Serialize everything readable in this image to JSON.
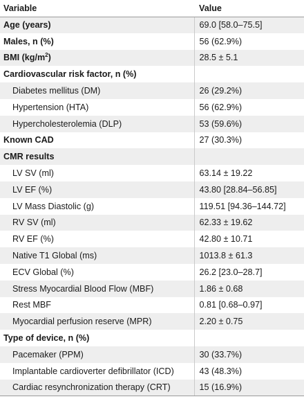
{
  "header": {
    "variable": "Variable",
    "value": "Value"
  },
  "rows": [
    {
      "label": "Age (years)",
      "value": "69.0 [58.0–75.5]",
      "style": "bold"
    },
    {
      "label": "Males, n (%)",
      "value": "56 (62.9%)",
      "style": "bold"
    },
    {
      "label": "BMI (kg/m",
      "sup": "2",
      "label_suffix": ")",
      "value": "28.5 ± 5.1",
      "style": "bold"
    },
    {
      "label": "Cardiovascular risk factor, n (%)",
      "value": "",
      "style": "bold"
    },
    {
      "label": "Diabetes mellitus (DM)",
      "value": "26 (29.2%)",
      "style": "sub"
    },
    {
      "label": "Hypertension (HTA)",
      "value": "56 (62.9%)",
      "style": "sub"
    },
    {
      "label": "Hypercholesterolemia (DLP)",
      "value": "53 (59.6%)",
      "style": "sub"
    },
    {
      "label": "Known CAD",
      "value": "27 (30.3%)",
      "style": "bold"
    },
    {
      "label": "CMR results",
      "value": "",
      "style": "bold"
    },
    {
      "label": "LV SV (ml)",
      "value": "63.14 ± 19.22",
      "style": "sub"
    },
    {
      "label": "LV EF (%)",
      "value": "43.80 [28.84–56.85]",
      "style": "sub"
    },
    {
      "label": "LV Mass Diastolic (g)",
      "value": "119.51 [94.36–144.72]",
      "style": "sub"
    },
    {
      "label": "RV SV (ml)",
      "value": "62.33 ± 19.62",
      "style": "sub"
    },
    {
      "label": "RV EF (%)",
      "value": "42.80 ± 10.71",
      "style": "sub"
    },
    {
      "label": "Native T1 Global (ms)",
      "value": "1013.8 ± 61.3",
      "style": "sub"
    },
    {
      "label": "ECV Global (%)",
      "value": "26.2 [23.0–28.7]",
      "style": "sub"
    },
    {
      "label": "Stress Myocardial Blood Flow (MBF)",
      "value": "1.86 ± 0.68",
      "style": "sub"
    },
    {
      "label": "Rest MBF",
      "value": "0.81 [0.68–0.97]",
      "style": "sub"
    },
    {
      "label": "Myocardial perfusion reserve (MPR)",
      "value": "2.20 ± 0.75",
      "style": "sub"
    },
    {
      "label": "Type of device, n (%)",
      "value": "",
      "style": "bold"
    },
    {
      "label": "Pacemaker (PPM)",
      "value": "30 (33.7%)",
      "style": "sub"
    },
    {
      "label": "Implantable cardioverter defibrillator (ICD)",
      "value": "43 (48.3%)",
      "style": "sub"
    },
    {
      "label": "Cardiac resynchronization therapy (CRT)",
      "value": "15 (16.9%)",
      "style": "sub"
    }
  ]
}
